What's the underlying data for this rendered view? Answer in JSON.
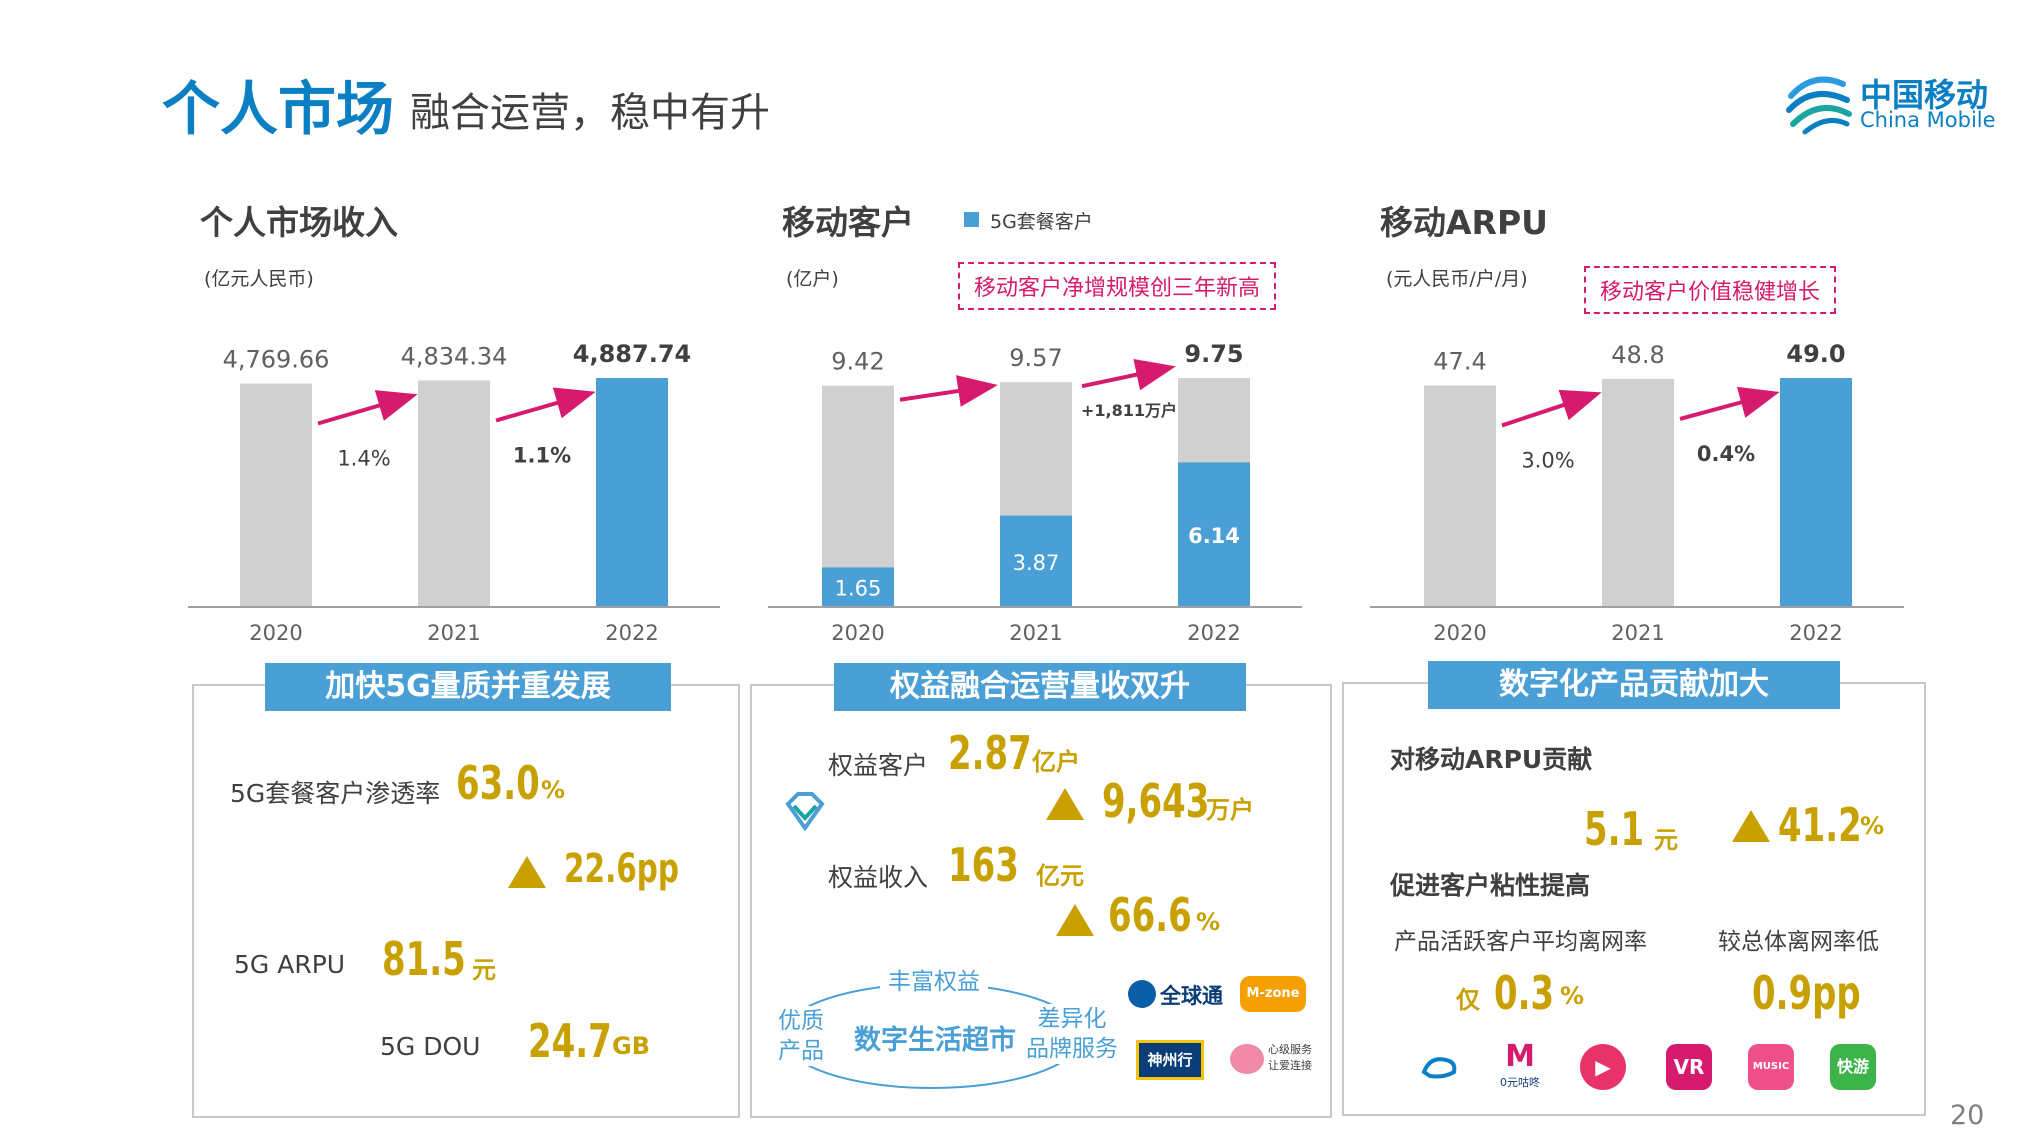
{
  "header": {
    "title_main": "个人市场",
    "title_sub": "融合运营，稳中有升",
    "logo_cn": "中国移动",
    "logo_en": "China Mobile"
  },
  "charts_text": {
    "c1_title": "个人市场收入",
    "c1_unit": "(亿元人民币)",
    "c2_title": "移动客户",
    "c2_unit": "(亿户)",
    "c2_legend": "5G套餐客户",
    "c2_callout": "移动客户净增规模创三年新高",
    "c3_title": "移动ARPU",
    "c3_unit": "(元人民币/户/月)",
    "c3_callout": "移动客户价值稳健增长"
  },
  "chart_data": [
    {
      "type": "bar",
      "title": "个人市场收入",
      "unit": "(亿元人民币)",
      "categories": [
        "2020",
        "2021",
        "2022"
      ],
      "series": [
        {
          "values": [
            4769.66,
            4834.34,
            4887.74
          ]
        }
      ],
      "value_labels": [
        "4,769.66",
        "4,834.34",
        "4,887.74"
      ],
      "growth_labels": [
        "1.4%",
        "1.1%"
      ],
      "colors": [
        "#d0d0d0",
        "#d0d0d0",
        "#4a9fd6"
      ],
      "ylim": [
        0,
        4887.74
      ]
    },
    {
      "type": "bar",
      "title": "移动客户",
      "unit": "(亿户)",
      "categories": [
        "2020",
        "2021",
        "2022"
      ],
      "series": [
        {
          "name": "5G套餐客户",
          "values": [
            1.65,
            3.87,
            6.14
          ]
        },
        {
          "values": [
            9.42,
            9.57,
            9.75
          ]
        }
      ],
      "total_labels": [
        "9.42",
        "9.57",
        "9.75"
      ],
      "fiveg_labels": [
        "1.65",
        "3.87",
        "6.14"
      ],
      "annotation": "+1,811万户",
      "callout": "移动客户净增规模创三年新高",
      "colors": {
        "total": "#d0d0d0",
        "fiveg": "#4a9fd6"
      },
      "ylim": [
        0,
        9.75
      ]
    },
    {
      "type": "bar",
      "title": "移动ARPU",
      "unit": "(元人民币/户/月)",
      "categories": [
        "2020",
        "2021",
        "2022"
      ],
      "series": [
        {
          "values": [
            47.4,
            48.8,
            49.0
          ]
        }
      ],
      "value_labels": [
        "47.4",
        "48.8",
        "49.0"
      ],
      "growth_labels": [
        "3.0%",
        "0.4%"
      ],
      "callout": "移动客户价值稳健增长",
      "colors": [
        "#d0d0d0",
        "#d0d0d0",
        "#4a9fd6"
      ],
      "ylim": [
        0,
        49.0
      ]
    }
  ],
  "panel1": {
    "title": "加快5G量质并重发展",
    "pen_label": "5G套餐客户渗透率",
    "pen_value": "63.0",
    "pen_unit": "%",
    "pen_up_value": "22.6pp",
    "arpu_label": "5G ARPU",
    "arpu_value": "81.5",
    "arpu_unit": "元",
    "dou_label": "5G DOU",
    "dou_value": "24.7",
    "dou_unit": "GB"
  },
  "panel2": {
    "title": "权益融合运营量收双升",
    "cust_label": "权益客户",
    "cust_value": "2.87",
    "cust_unit": "亿户",
    "cust_up_value": "9,643",
    "cust_up_unit": "万户",
    "rev_label": "权益收入",
    "rev_value": "163",
    "rev_unit": "亿元",
    "rev_up_value": "66.6",
    "rev_up_unit": "%",
    "d_top": "丰富权益",
    "d_left_1": "优质",
    "d_left_2": "产品",
    "d_center": "数字生活超市",
    "d_right_1": "差异化",
    "d_right_2": "品牌服务",
    "logo_qqt": "全球通",
    "logo_mzone": "M-zone",
    "logo_szx": "神州行",
    "logo_service_1": "心级服务",
    "logo_service_2": "让爱连接"
  },
  "panel3": {
    "title": "数字化产品贡献加大",
    "arpu_heading": "对移动ARPU贡献",
    "arpu_value": "5.1",
    "arpu_unit": "元",
    "arpu_up_value": "41.2",
    "arpu_up_unit": "%",
    "sticky_heading": "促进客户粘性提高",
    "churn_label": "产品活跃客户平均离网率",
    "churn_lower_label": "较总体离网率低",
    "churn_prefix": "仅",
    "churn_value": "0.3",
    "churn_unit": "%",
    "churn_lower_value": "0.9pp",
    "app_migu": "0元咕咚",
    "app_vr": "VR",
    "app_music": "MUSIC",
    "app_kuaiyou": "快游"
  },
  "page_number": "20"
}
